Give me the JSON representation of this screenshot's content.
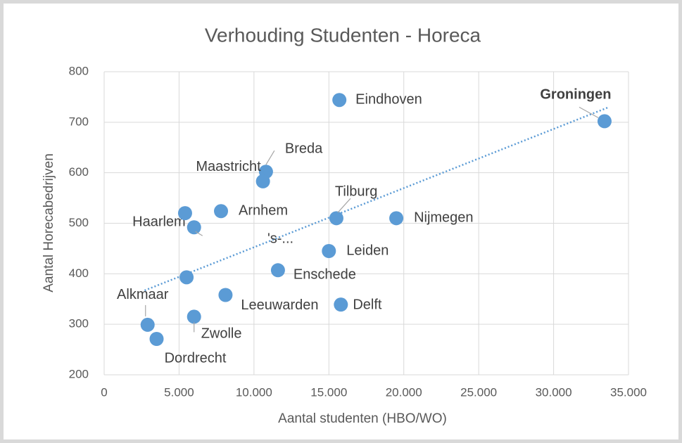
{
  "chart_data": {
    "type": "scatter",
    "title": "Verhouding Studenten - Horeca",
    "xlabel": "Aantal studenten (HBO/WO)",
    "ylabel": "Aantal Horecabedrijven",
    "xlim": [
      0,
      35000
    ],
    "ylim": [
      200,
      800
    ],
    "xticks": [
      0,
      {
        "value": 5000,
        "label": "5.000"
      },
      {
        "value": 10000,
        "label": "10.000"
      },
      {
        "value": 15000,
        "label": "15.000"
      },
      {
        "value": 20000,
        "label": "20.000"
      },
      {
        "value": 25000,
        "label": "25.000"
      },
      {
        "value": 30000,
        "label": "30.000"
      },
      {
        "value": 35000,
        "label": "35.000"
      }
    ],
    "yticks": [
      200,
      300,
      400,
      500,
      600,
      700,
      800
    ],
    "grid": true,
    "color": "#5b9bd5",
    "labels": [
      "Eindhoven",
      "Groningen",
      "Breda",
      "Maastricht",
      "Tilburg",
      "Nijmegen",
      "Haarlem",
      "Arnhem",
      "'s-...",
      "Leiden",
      "Enschede",
      "Leeuwarden",
      "Delft",
      null,
      "Alkmaar",
      "Zwolle",
      "Dordrecht"
    ],
    "x": [
      15700,
      33400,
      10800,
      10600,
      15500,
      19500,
      6000,
      7800,
      5400,
      15000,
      11600,
      8100,
      15800,
      5500,
      2900,
      6000,
      3500
    ],
    "y": [
      744,
      702,
      602,
      583,
      510,
      510,
      492,
      524,
      520,
      445,
      407,
      358,
      339,
      393,
      299,
      315,
      271
    ],
    "trendline": {
      "x": [
        2700,
        33700
      ],
      "y": [
        367,
        730
      ]
    }
  }
}
